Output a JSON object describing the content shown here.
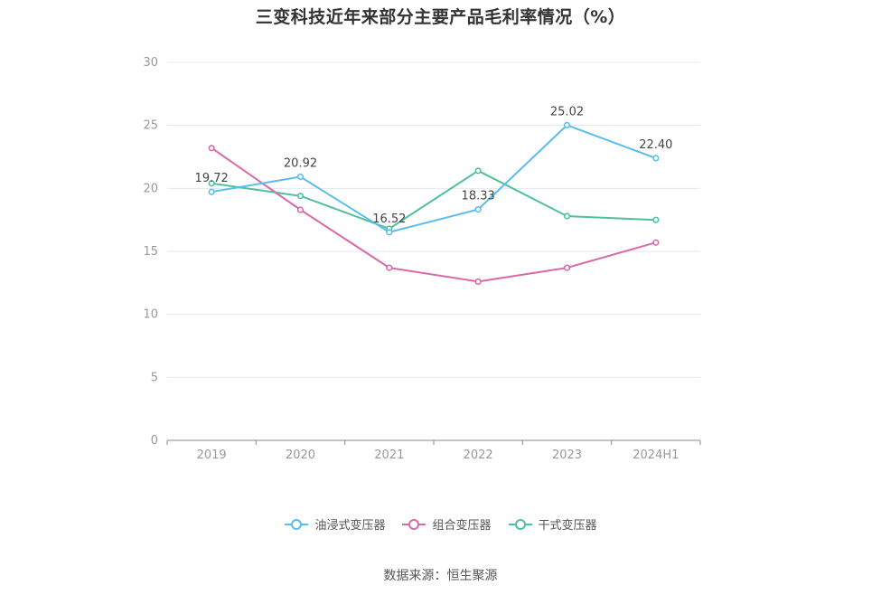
{
  "chart_data": {
    "type": "line",
    "title": "三变科技近年来部分主要产品毛利率情况（%）",
    "categories": [
      "2019",
      "2020",
      "2021",
      "2022",
      "2023",
      "2024H1"
    ],
    "ylim": [
      0,
      30
    ],
    "yticks": [
      0,
      5,
      10,
      15,
      20,
      25,
      30
    ],
    "grid": true,
    "legend_position": "bottom",
    "series": [
      {
        "name": "油浸式变压器",
        "color": "#5bbcf0",
        "values": [
          19.72,
          20.92,
          16.52,
          18.33,
          25.02,
          22.4
        ],
        "show_labels": true
      },
      {
        "name": "组合变压器",
        "color": "#d96aa8",
        "values": [
          23.2,
          18.3,
          13.7,
          12.6,
          13.7,
          15.7
        ],
        "show_labels": false
      },
      {
        "name": "干式变压器",
        "color": "#4fbf9f",
        "values": [
          20.4,
          19.4,
          16.8,
          21.4,
          17.8,
          17.5
        ],
        "show_labels": false
      }
    ],
    "data_labels": [
      "19.72",
      "20.92",
      "16.52",
      "18.33",
      "25.02",
      "22.40"
    ]
  },
  "source": "数据来源：恒生聚源"
}
